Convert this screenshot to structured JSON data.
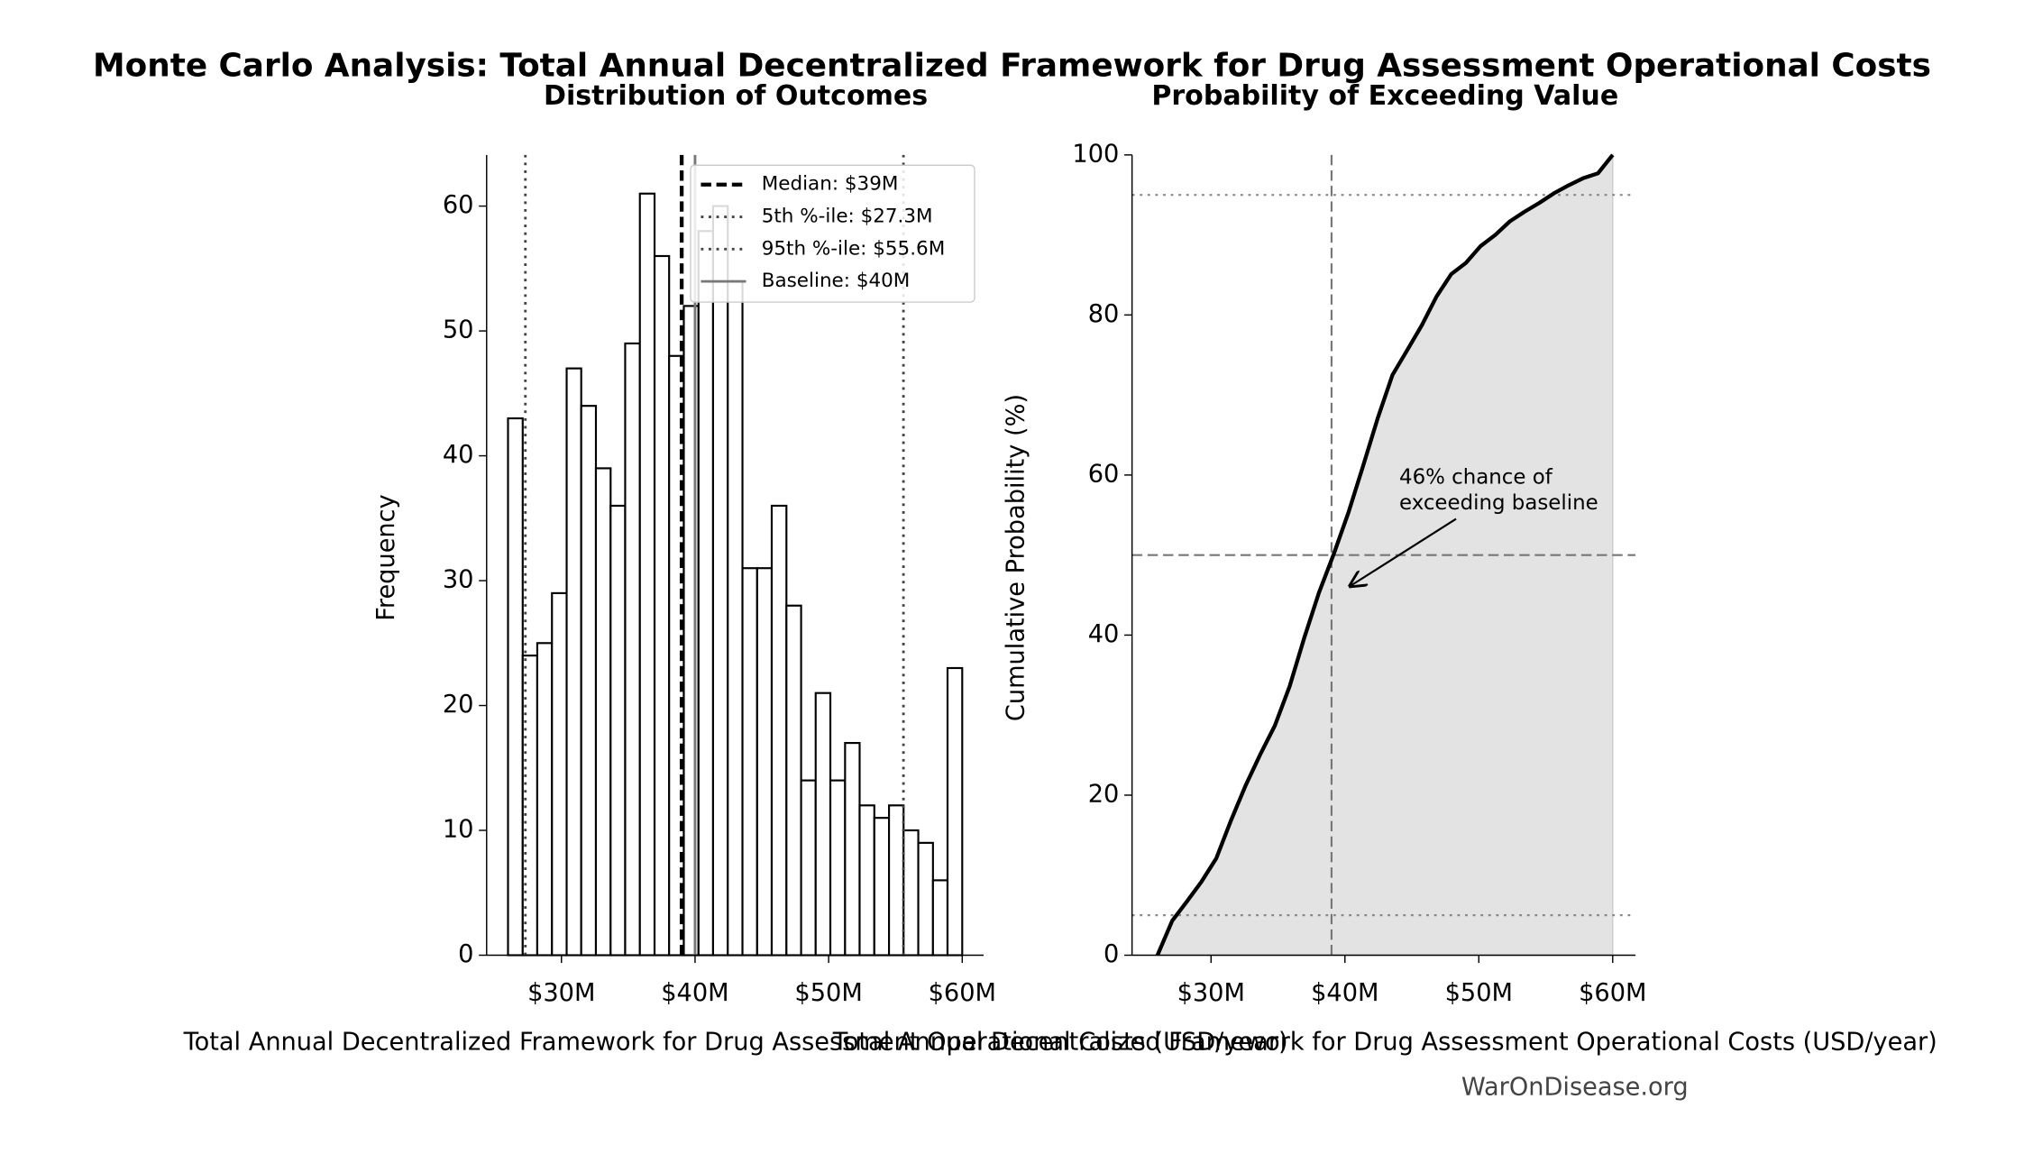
{
  "title": "Monte Carlo Analysis: Total Annual Decentralized Framework for Drug Assessment Operational Costs",
  "chart_data": [
    {
      "type": "histogram",
      "title": "Distribution of Outcomes",
      "xlabel": "Total Annual Decentralized Framework for Drug Assessment Operational Costs (USD/year)",
      "ylabel": "Frequency",
      "bins": [
        26,
        27.1,
        28.19,
        29.29,
        30.39,
        31.48,
        32.58,
        33.68,
        34.77,
        35.87,
        36.97,
        38.06,
        39.16,
        40.26,
        41.35,
        42.45,
        43.55,
        44.65,
        45.74,
        46.84,
        47.94,
        49.03,
        50.13,
        51.23,
        52.32,
        53.42,
        54.52,
        55.61,
        56.71,
        57.81,
        58.9,
        60
      ],
      "values": [
        43,
        24,
        25,
        29,
        47,
        44,
        39,
        36,
        49,
        61,
        56,
        48,
        52,
        58,
        60,
        54,
        31,
        31,
        36,
        28,
        14,
        21,
        14,
        17,
        12,
        11,
        12,
        10,
        9,
        6,
        23
      ],
      "color": "#ffffff",
      "edgecolor": "#000000",
      "xlim": [
        24.4,
        61.6
      ],
      "xticks": [
        {
          "value": 30,
          "label": "$30M"
        },
        {
          "value": 40,
          "label": "$40M"
        },
        {
          "value": 50,
          "label": "$50M"
        },
        {
          "value": 60,
          "label": "$60M"
        }
      ],
      "ylim": [
        0,
        64.1
      ],
      "yticks": [
        0,
        10,
        20,
        30,
        40,
        50,
        60
      ],
      "legend": "upper right",
      "reference_lines": [
        {
          "name": "Median: $39M",
          "value": 39,
          "style": "dashed",
          "color": "#000000"
        },
        {
          "name": "5th %-ile: $27.3M",
          "value": 27.3,
          "style": "dotted",
          "color": "#444444"
        },
        {
          "name": "95th %-ile: $55.6M",
          "value": 55.6,
          "style": "dotted",
          "color": "#444444"
        },
        {
          "name": "Baseline: $40M",
          "value": 40,
          "style": "solid",
          "color": "#777777"
        }
      ]
    },
    {
      "type": "line",
      "title": "Probability of Exceeding Value",
      "xlabel": "Total Annual Decentralized Framework for Drug Assessment Operational Costs (USD/year)",
      "ylabel": "Cumulative Probability (%)",
      "x": [
        26,
        27.1,
        28.19,
        29.29,
        30.39,
        31.48,
        32.58,
        33.68,
        34.77,
        35.87,
        36.97,
        38.06,
        39.16,
        40.26,
        41.35,
        42.45,
        43.55,
        44.65,
        45.74,
        46.84,
        47.94,
        49.03,
        50.13,
        51.23,
        52.32,
        53.42,
        54.52,
        55.61,
        56.71,
        57.81,
        58.9,
        60
      ],
      "values": [
        0,
        4.3,
        6.7,
        9.2,
        12.1,
        16.8,
        21.2,
        25.1,
        28.7,
        33.6,
        39.7,
        45.3,
        50.1,
        55.3,
        61.1,
        67.1,
        72.5,
        75.6,
        78.7,
        82.3,
        85.1,
        86.5,
        88.6,
        90.0,
        91.7,
        92.9,
        94.0,
        95.2,
        96.2,
        97.1,
        97.7,
        100
      ],
      "color": "#000000",
      "fill_color": "#e3e3e3",
      "xlim": [
        24.1,
        61.7
      ],
      "xticks": [
        {
          "value": 30,
          "label": "$30M"
        },
        {
          "value": 40,
          "label": "$40M"
        },
        {
          "value": 50,
          "label": "$50M"
        },
        {
          "value": 60,
          "label": "$60M"
        }
      ],
      "ylim": [
        0,
        100
      ],
      "yticks": [
        0,
        20,
        40,
        60,
        80,
        100
      ],
      "reference_lines": [
        {
          "axis": "x",
          "value": 39,
          "style": "dashed",
          "color": "#777777"
        },
        {
          "axis": "y",
          "value": 50,
          "style": "dashed",
          "color": "#777777"
        },
        {
          "axis": "y",
          "value": 5,
          "style": "dotted",
          "color": "#888888"
        },
        {
          "axis": "y",
          "value": 95,
          "style": "dotted",
          "color": "#888888"
        }
      ],
      "annotation": {
        "text": [
          "46% chance of",
          "exceeding baseline"
        ]
      }
    }
  ],
  "watermark": "WarOnDisease.org"
}
